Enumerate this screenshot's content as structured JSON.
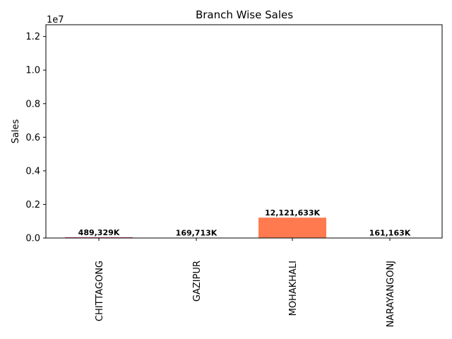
{
  "chart_data": {
    "type": "bar",
    "title": "Branch Wise Sales",
    "xlabel": "",
    "ylabel": "Sales",
    "offset_text": "1e7",
    "categories": [
      "CHITTAGONG",
      "GAZIPUR",
      "MOHAKHALI",
      "NARAYANGONJ"
    ],
    "values": [
      489329000,
      169713000,
      12121633000,
      161163000
    ],
    "bar_labels": [
      "489,329K",
      "169,713K",
      "12,121,633K",
      "161,163K"
    ],
    "colors": [
      "#d6607a",
      "#3e7a8f",
      "#ff7b4f",
      "#2b2bd9"
    ],
    "y_scale_divisor": 1000,
    "ylim": [
      0,
      12.7
    ],
    "yticks": [
      0.0,
      0.2,
      0.4,
      0.6,
      0.8,
      1.0,
      1.2
    ],
    "ytick_labels": [
      "0.0",
      "0.2",
      "0.4",
      "0.6",
      "0.8",
      "1.0",
      "1.2"
    ],
    "grid": false,
    "legend": "none"
  }
}
